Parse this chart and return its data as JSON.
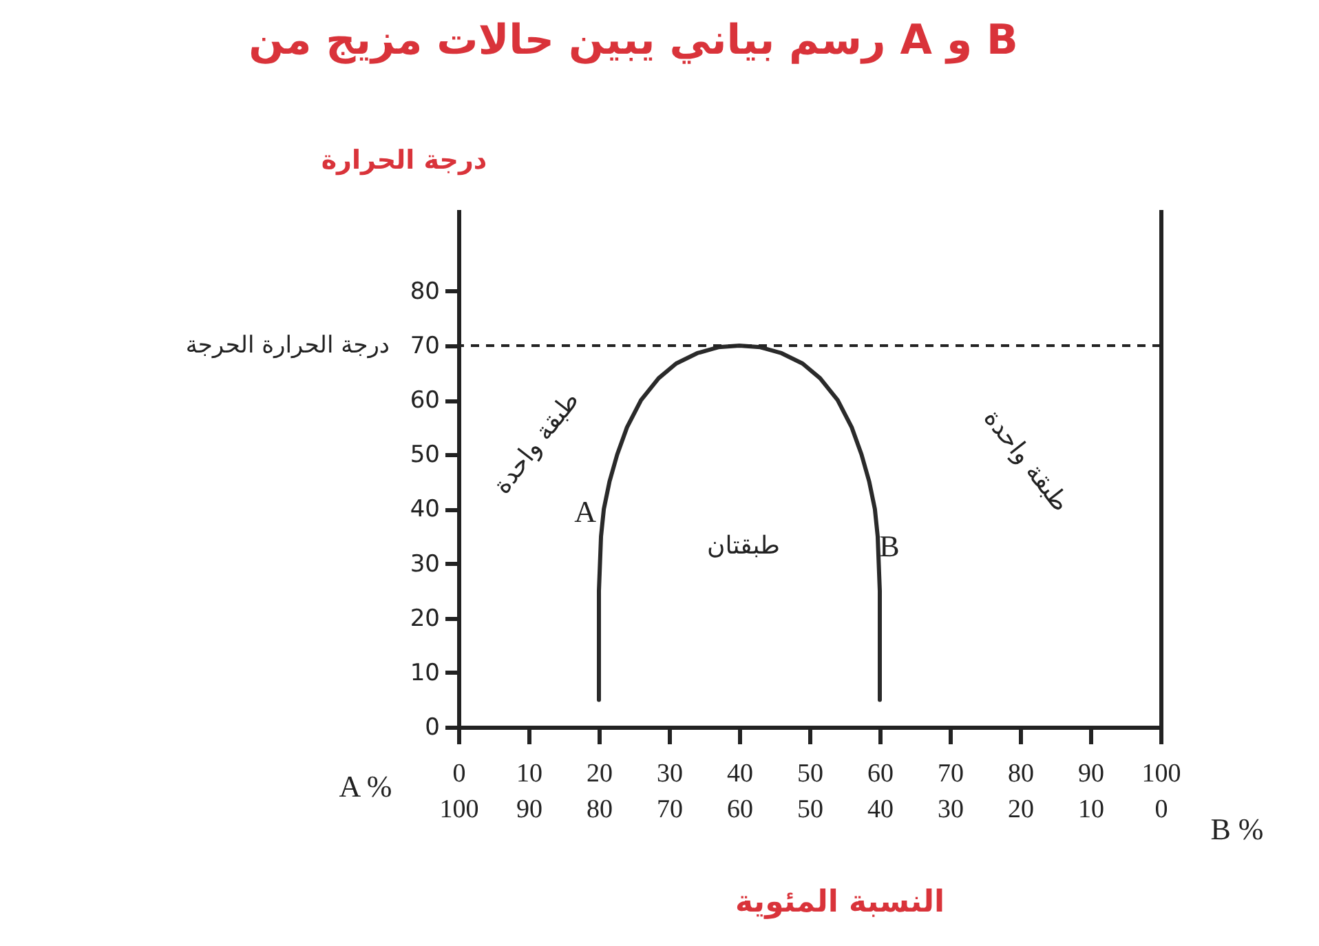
{
  "chart_data": {
    "type": "line",
    "title": "رسم بياني يبين حالات مزيج من A و B",
    "ylabel": "درجة الحرارة",
    "xlabel": "A %",
    "x2label": "B %",
    "series": [
      {
        "color": "#2a2a2a",
        "x": [
          20,
          20,
          20,
          20.3,
          20.7,
          21.5,
          22.6,
          24,
          26,
          28.5,
          31,
          34,
          37,
          40,
          43,
          46,
          49,
          51.5,
          54,
          56,
          57.4,
          58.5,
          59.3,
          59.7,
          60,
          60,
          60
        ],
        "values": [
          5,
          15,
          25,
          35,
          40,
          45,
          50,
          55,
          60,
          64,
          66.7,
          68.6,
          69.7,
          70,
          69.7,
          68.6,
          66.7,
          64,
          60,
          55,
          50,
          45,
          40,
          35,
          25,
          15,
          5
        ]
      }
    ],
    "xlim": [
      0,
      100
    ],
    "xticks": [
      0,
      10,
      20,
      30,
      40,
      50,
      60,
      70,
      80,
      90,
      100
    ],
    "x2lim": [
      100,
      0
    ],
    "x2ticks": [
      100,
      90,
      80,
      70,
      60,
      50,
      40,
      30,
      20,
      10,
      0
    ],
    "ylim": [
      0,
      95
    ],
    "yticks": [
      0,
      10,
      20,
      30,
      40,
      50,
      60,
      70,
      80
    ],
    "ref_lines": [
      {
        "axis": "y",
        "value": 70,
        "label": "درجة الحرارة الحرجة",
        "line_style": "dashed"
      }
    ],
    "annotations": [
      "طبقة واحدة",
      "طبقة واحدة",
      "طبقتان",
      "A",
      "B",
      "النسبة المئوية"
    ]
  }
}
